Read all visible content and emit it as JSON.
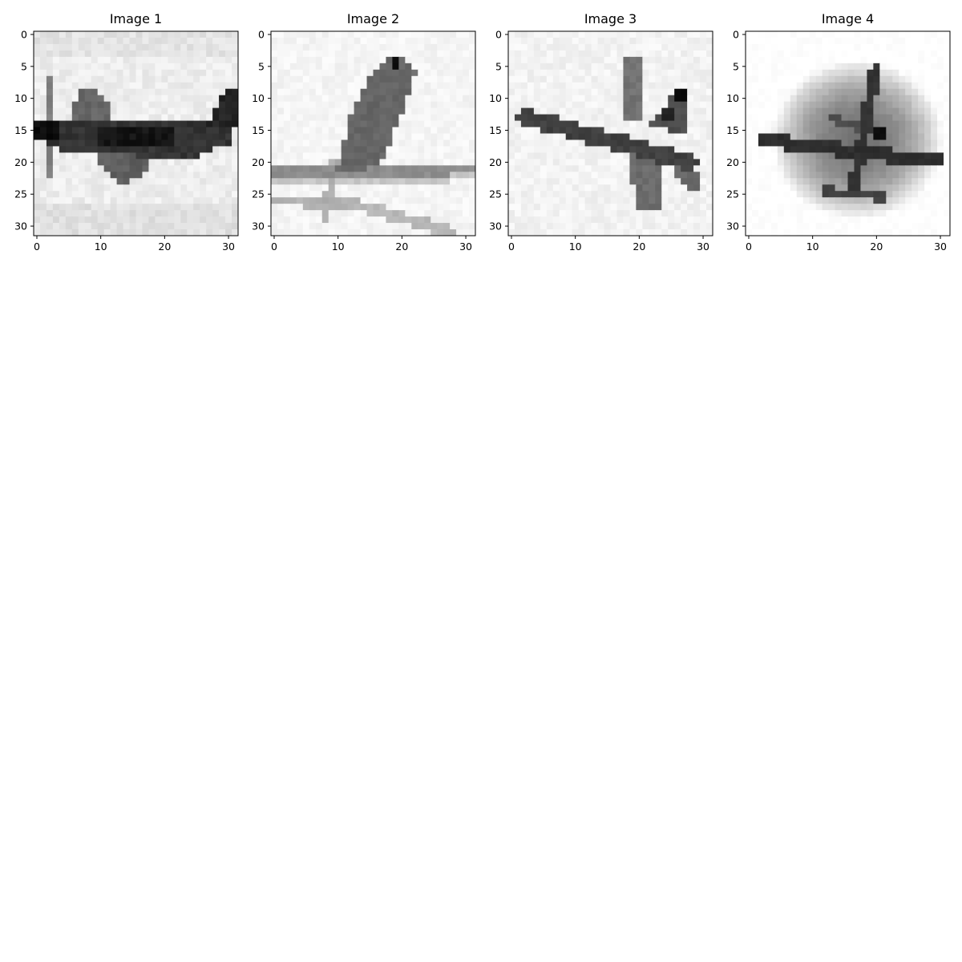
{
  "figure": {
    "background": "#ffffff",
    "colormap": "gray_r",
    "pixel_value_range": [
      0,
      1
    ]
  },
  "chart_data": [
    {
      "type": "heatmap",
      "title": "Image 1",
      "subject": "propeller airplane, side view",
      "width": 32,
      "height": 32,
      "xlim": [
        -0.5,
        31.5
      ],
      "ylim": [
        31.5,
        -0.5
      ],
      "xticks": [
        0,
        10,
        20,
        30
      ],
      "yticks": [
        0,
        5,
        10,
        15,
        20,
        25,
        30
      ],
      "background_level": 0.07
    },
    {
      "type": "heatmap",
      "title": "Image 2",
      "subject": "bird perched on a wire",
      "width": 32,
      "height": 32,
      "xlim": [
        -0.5,
        31.5
      ],
      "ylim": [
        31.5,
        -0.5
      ],
      "xticks": [
        0,
        10,
        20,
        30
      ],
      "yticks": [
        0,
        5,
        10,
        15,
        20,
        25,
        30
      ],
      "background_level": 0.04
    },
    {
      "type": "heatmap",
      "title": "Image 3",
      "subject": "jet aircraft, top view",
      "width": 32,
      "height": 32,
      "xlim": [
        -0.5,
        31.5
      ],
      "ylim": [
        31.5,
        -0.5
      ],
      "xticks": [
        0,
        10,
        20,
        30
      ],
      "yticks": [
        0,
        5,
        10,
        15,
        20,
        25,
        30
      ],
      "background_level": 0.05
    },
    {
      "type": "heatmap",
      "title": "Image 4",
      "subject": "blurred average airplane silhouette",
      "width": 32,
      "height": 32,
      "xlim": [
        -0.5,
        31.5
      ],
      "ylim": [
        31.5,
        -0.5
      ],
      "xticks": [
        0,
        10,
        20,
        30
      ],
      "yticks": [
        0,
        5,
        10,
        15,
        20,
        25,
        30
      ],
      "background_level": 0.0
    }
  ]
}
